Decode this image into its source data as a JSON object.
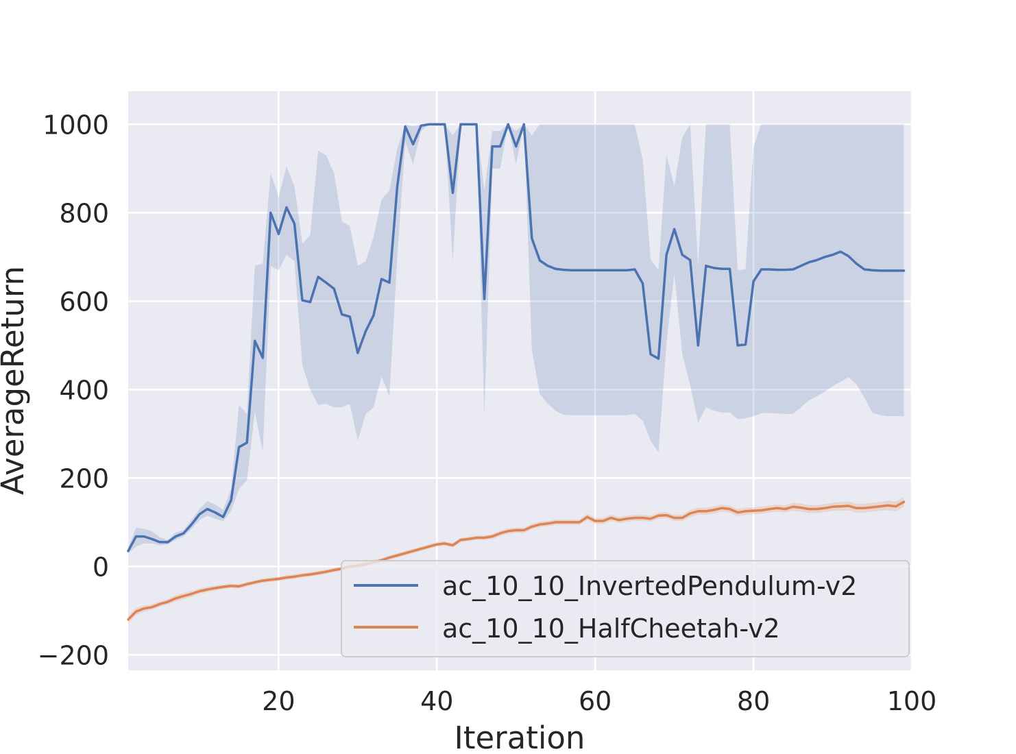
{
  "colors": {
    "background": "#ffffff",
    "plot_background": "#eaeaf2",
    "grid": "#ffffff",
    "text": "#262626",
    "series_1": "#4c72b0",
    "series_2": "#dd8452"
  },
  "chart_data": {
    "type": "line",
    "title": "",
    "xlabel": "Iteration",
    "ylabel": "AverageReturn",
    "xlim": [
      1,
      100
    ],
    "ylim": [
      -235,
      1075
    ],
    "xticks": [
      20,
      40,
      60,
      80,
      100
    ],
    "yticks": [
      -200,
      0,
      200,
      400,
      600,
      800,
      1000
    ],
    "xtick_labels": [
      "20",
      "40",
      "60",
      "80",
      "100"
    ],
    "ytick_labels": [
      "−200",
      "0",
      "200",
      "400",
      "600",
      "800",
      "1000"
    ],
    "grid": true,
    "legend_position": "lower-right",
    "series": [
      {
        "name": "ac_10_10_InvertedPendulum-v2",
        "color": "#4c72b0",
        "x": [
          1,
          2,
          3,
          4,
          5,
          6,
          7,
          8,
          9,
          10,
          11,
          12,
          13,
          14,
          15,
          16,
          17,
          18,
          19,
          20,
          21,
          22,
          23,
          24,
          25,
          26,
          27,
          28,
          29,
          30,
          31,
          32,
          33,
          34,
          35,
          36,
          37,
          38,
          39,
          40,
          41,
          42,
          43,
          44,
          45,
          46,
          47,
          48,
          49,
          50,
          51,
          52,
          53,
          54,
          55,
          56,
          57,
          58,
          59,
          60,
          61,
          62,
          63,
          64,
          65,
          66,
          67,
          68,
          69,
          70,
          71,
          72,
          73,
          74,
          75,
          76,
          77,
          78,
          79,
          80,
          81,
          82,
          83,
          84,
          85,
          86,
          87,
          88,
          89,
          90,
          91,
          92,
          93,
          94,
          95,
          96,
          97,
          98,
          99
        ],
        "y": [
          35,
          68,
          68,
          62,
          55,
          55,
          68,
          75,
          95,
          118,
          130,
          122,
          112,
          150,
          270,
          280,
          510,
          472,
          800,
          752,
          812,
          775,
          602,
          598,
          655,
          642,
          628,
          570,
          565,
          483,
          532,
          568,
          650,
          642,
          860,
          995,
          955,
          997,
          1000,
          1000,
          1000,
          845,
          1000,
          1000,
          1000,
          605,
          950,
          950,
          1000,
          950,
          1000,
          742,
          692,
          680,
          673,
          671,
          670,
          670,
          670,
          670,
          670,
          670,
          670,
          670,
          672,
          640,
          480,
          470,
          705,
          763,
          705,
          693,
          500,
          680,
          675,
          673,
          673,
          500,
          502,
          645,
          672,
          672,
          671,
          671,
          672,
          680,
          688,
          693,
          700,
          705,
          712,
          702,
          685,
          672,
          670,
          669,
          669,
          669,
          669
        ],
        "lower": [
          30,
          45,
          52,
          52,
          48,
          50,
          60,
          68,
          85,
          105,
          115,
          108,
          102,
          125,
          175,
          195,
          350,
          260,
          680,
          670,
          705,
          690,
          455,
          400,
          365,
          368,
          360,
          360,
          368,
          285,
          345,
          360,
          430,
          385,
          700,
          960,
          910,
          985,
          1000,
          1000,
          1000,
          690,
          1000,
          1000,
          1000,
          340,
          900,
          900,
          1000,
          910,
          1000,
          490,
          390,
          368,
          352,
          343,
          342,
          342,
          342,
          342,
          342,
          342,
          342,
          342,
          345,
          330,
          285,
          258,
          505,
          662,
          480,
          410,
          325,
          360,
          352,
          348,
          348,
          333,
          335,
          340,
          347,
          347,
          346,
          345,
          345,
          360,
          376,
          385,
          395,
          408,
          418,
          428,
          412,
          382,
          348,
          342,
          340,
          340,
          340
        ],
        "upper": [
          42,
          88,
          85,
          80,
          66,
          60,
          77,
          82,
          105,
          130,
          148,
          140,
          128,
          175,
          365,
          345,
          680,
          685,
          890,
          835,
          905,
          860,
          730,
          750,
          940,
          930,
          890,
          780,
          770,
          680,
          690,
          745,
          830,
          850,
          945,
          1000,
          995,
          1000,
          1000,
          1000,
          1000,
          975,
          1000,
          1000,
          1000,
          850,
          985,
          985,
          1000,
          985,
          1000,
          975,
          1000,
          1000,
          1000,
          1000,
          1000,
          1000,
          1000,
          1000,
          1000,
          1000,
          1000,
          1000,
          1000,
          920,
          695,
          670,
          930,
          860,
          970,
          1000,
          680,
          1000,
          1000,
          1000,
          1000,
          670,
          672,
          950,
          1000,
          1000,
          1000,
          1000,
          1000,
          1000,
          1000,
          1000,
          1000,
          1000,
          1000,
          1000,
          1000,
          1000,
          1000,
          1000,
          1000,
          1000,
          1000
        ]
      },
      {
        "name": "ac_10_10_HalfCheetah-v2",
        "color": "#dd8452",
        "x": [
          1,
          2,
          3,
          4,
          5,
          6,
          7,
          8,
          9,
          10,
          11,
          12,
          13,
          14,
          15,
          16,
          17,
          18,
          19,
          20,
          21,
          22,
          23,
          24,
          25,
          26,
          27,
          28,
          29,
          30,
          31,
          32,
          33,
          34,
          35,
          36,
          37,
          38,
          39,
          40,
          41,
          42,
          43,
          44,
          45,
          46,
          47,
          48,
          49,
          50,
          51,
          52,
          53,
          54,
          55,
          56,
          57,
          58,
          59,
          60,
          61,
          62,
          63,
          64,
          65,
          66,
          67,
          68,
          69,
          70,
          71,
          72,
          73,
          74,
          75,
          76,
          77,
          78,
          79,
          80,
          81,
          82,
          83,
          84,
          85,
          86,
          87,
          88,
          89,
          90,
          91,
          92,
          93,
          94,
          95,
          96,
          97,
          98,
          99
        ],
        "y": [
          -120,
          -102,
          -95,
          -92,
          -85,
          -80,
          -72,
          -67,
          -62,
          -56,
          -52,
          -49,
          -46,
          -44,
          -45,
          -40,
          -36,
          -32,
          -30,
          -28,
          -25,
          -23,
          -20,
          -18,
          -15,
          -12,
          -8,
          -5,
          0,
          2,
          5,
          10,
          14,
          20,
          25,
          30,
          35,
          40,
          45,
          50,
          52,
          48,
          60,
          62,
          65,
          65,
          68,
          75,
          80,
          82,
          82,
          90,
          95,
          97,
          100,
          100,
          100,
          100,
          112,
          103,
          103,
          110,
          105,
          108,
          110,
          110,
          108,
          115,
          116,
          110,
          110,
          120,
          125,
          125,
          128,
          132,
          130,
          122,
          125,
          126,
          127,
          130,
          132,
          130,
          135,
          133,
          130,
          130,
          132,
          135,
          136,
          137,
          132,
          132,
          134,
          136,
          138,
          136,
          146
        ],
        "lower": [
          -128,
          -110,
          -102,
          -98,
          -91,
          -86,
          -79,
          -74,
          -69,
          -62,
          -58,
          -55,
          -51,
          -49,
          -50,
          -45,
          -41,
          -37,
          -35,
          -33,
          -30,
          -28,
          -25,
          -23,
          -20,
          -17,
          -13,
          -10,
          -5,
          -3,
          0,
          5,
          9,
          15,
          20,
          25,
          30,
          35,
          40,
          45,
          47,
          43,
          55,
          57,
          60,
          60,
          62,
          69,
          74,
          76,
          76,
          84,
          89,
          91,
          94,
          94,
          94,
          94,
          105,
          96,
          96,
          103,
          98,
          101,
          103,
          103,
          101,
          108,
          109,
          103,
          103,
          112,
          117,
          117,
          120,
          124,
          122,
          114,
          117,
          118,
          119,
          122,
          124,
          122,
          126,
          124,
          121,
          121,
          123,
          126,
          126,
          127,
          122,
          122,
          124,
          126,
          127,
          125,
          135
        ],
        "upper": [
          -112,
          -94,
          -88,
          -86,
          -79,
          -74,
          -65,
          -60,
          -55,
          -50,
          -46,
          -43,
          -41,
          -39,
          -40,
          -35,
          -31,
          -27,
          -25,
          -23,
          -20,
          -18,
          -15,
          -13,
          -10,
          -7,
          -3,
          0,
          5,
          7,
          10,
          15,
          19,
          25,
          30,
          35,
          40,
          45,
          50,
          55,
          57,
          53,
          65,
          67,
          70,
          70,
          74,
          81,
          86,
          88,
          88,
          96,
          101,
          103,
          106,
          106,
          106,
          106,
          119,
          110,
          110,
          117,
          112,
          115,
          117,
          117,
          115,
          122,
          123,
          117,
          117,
          128,
          133,
          133,
          136,
          140,
          138,
          130,
          133,
          134,
          135,
          138,
          140,
          138,
          144,
          142,
          139,
          139,
          141,
          144,
          146,
          147,
          142,
          142,
          144,
          146,
          149,
          147,
          157
        ]
      }
    ]
  }
}
